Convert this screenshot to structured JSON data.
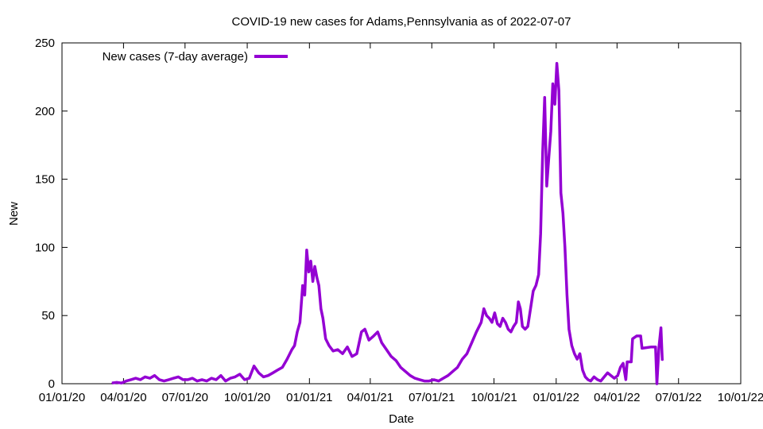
{
  "chart_data": {
    "type": "line",
    "title": "COVID-19 new cases for Adams,Pennsylvania as of 2022-07-07",
    "xlabel": "Date",
    "ylabel": "New",
    "xlim": [
      "2020-01-01",
      "2022-10-01"
    ],
    "ylim": [
      0,
      250
    ],
    "y_ticks": [
      0,
      50,
      100,
      150,
      200,
      250
    ],
    "x_ticks": [
      {
        "date": "2020-01-01",
        "label": "01/01/20"
      },
      {
        "date": "2020-04-01",
        "label": "04/01/20"
      },
      {
        "date": "2020-07-01",
        "label": "07/01/20"
      },
      {
        "date": "2020-10-01",
        "label": "10/01/20"
      },
      {
        "date": "2021-01-01",
        "label": "01/01/21"
      },
      {
        "date": "2021-04-01",
        "label": "04/01/21"
      },
      {
        "date": "2021-07-01",
        "label": "07/01/21"
      },
      {
        "date": "2021-10-01",
        "label": "10/01/21"
      },
      {
        "date": "2022-01-01",
        "label": "01/01/22"
      },
      {
        "date": "2022-04-01",
        "label": "04/01/22"
      },
      {
        "date": "2022-07-01",
        "label": "07/01/22"
      },
      {
        "date": "2022-10-01",
        "label": "10/01/22"
      }
    ],
    "legend_position": "top-left",
    "series": [
      {
        "name": "New cases (7-day average)",
        "color": "#9400d3",
        "points": [
          [
            "2020-03-15",
            0.5
          ],
          [
            "2020-03-22",
            1
          ],
          [
            "2020-03-29",
            0.5
          ],
          [
            "2020-04-05",
            2
          ],
          [
            "2020-04-12",
            3
          ],
          [
            "2020-04-19",
            4
          ],
          [
            "2020-04-26",
            3
          ],
          [
            "2020-05-03",
            5
          ],
          [
            "2020-05-10",
            4
          ],
          [
            "2020-05-17",
            6
          ],
          [
            "2020-05-24",
            3
          ],
          [
            "2020-05-31",
            2
          ],
          [
            "2020-06-07",
            3
          ],
          [
            "2020-06-14",
            4
          ],
          [
            "2020-06-21",
            5
          ],
          [
            "2020-06-28",
            3
          ],
          [
            "2020-07-05",
            3
          ],
          [
            "2020-07-12",
            4
          ],
          [
            "2020-07-19",
            2
          ],
          [
            "2020-07-26",
            3
          ],
          [
            "2020-08-02",
            2
          ],
          [
            "2020-08-09",
            4
          ],
          [
            "2020-08-16",
            3
          ],
          [
            "2020-08-23",
            6
          ],
          [
            "2020-08-30",
            2
          ],
          [
            "2020-09-06",
            4
          ],
          [
            "2020-09-13",
            5
          ],
          [
            "2020-09-20",
            7
          ],
          [
            "2020-09-27",
            3
          ],
          [
            "2020-10-04",
            4
          ],
          [
            "2020-10-11",
            13
          ],
          [
            "2020-10-18",
            8
          ],
          [
            "2020-10-25",
            5
          ],
          [
            "2020-11-01",
            6
          ],
          [
            "2020-11-08",
            8
          ],
          [
            "2020-11-15",
            10
          ],
          [
            "2020-11-22",
            12
          ],
          [
            "2020-11-29",
            18
          ],
          [
            "2020-12-06",
            25
          ],
          [
            "2020-12-10",
            28
          ],
          [
            "2020-12-14",
            38
          ],
          [
            "2020-12-18",
            45
          ],
          [
            "2020-12-22",
            72
          ],
          [
            "2020-12-25",
            65
          ],
          [
            "2020-12-28",
            98
          ],
          [
            "2020-12-31",
            82
          ],
          [
            "2021-01-03",
            90
          ],
          [
            "2021-01-06",
            75
          ],
          [
            "2021-01-09",
            86
          ],
          [
            "2021-01-12",
            78
          ],
          [
            "2021-01-15",
            72
          ],
          [
            "2021-01-18",
            55
          ],
          [
            "2021-01-21",
            48
          ],
          [
            "2021-01-25",
            33
          ],
          [
            "2021-01-30",
            28
          ],
          [
            "2021-02-05",
            24
          ],
          [
            "2021-02-12",
            25
          ],
          [
            "2021-02-19",
            22
          ],
          [
            "2021-02-26",
            27
          ],
          [
            "2021-03-05",
            20
          ],
          [
            "2021-03-12",
            22
          ],
          [
            "2021-03-19",
            38
          ],
          [
            "2021-03-24",
            40
          ],
          [
            "2021-03-30",
            32
          ],
          [
            "2021-04-06",
            35
          ],
          [
            "2021-04-12",
            38
          ],
          [
            "2021-04-18",
            30
          ],
          [
            "2021-04-25",
            25
          ],
          [
            "2021-05-02",
            20
          ],
          [
            "2021-05-09",
            17
          ],
          [
            "2021-05-16",
            12
          ],
          [
            "2021-05-23",
            9
          ],
          [
            "2021-05-30",
            6
          ],
          [
            "2021-06-06",
            4
          ],
          [
            "2021-06-13",
            3
          ],
          [
            "2021-06-20",
            2
          ],
          [
            "2021-06-27",
            2
          ],
          [
            "2021-07-04",
            3
          ],
          [
            "2021-07-11",
            2
          ],
          [
            "2021-07-18",
            4
          ],
          [
            "2021-07-25",
            6
          ],
          [
            "2021-08-01",
            9
          ],
          [
            "2021-08-08",
            12
          ],
          [
            "2021-08-15",
            18
          ],
          [
            "2021-08-22",
            22
          ],
          [
            "2021-08-29",
            30
          ],
          [
            "2021-09-05",
            38
          ],
          [
            "2021-09-12",
            45
          ],
          [
            "2021-09-16",
            55
          ],
          [
            "2021-09-20",
            50
          ],
          [
            "2021-09-24",
            48
          ],
          [
            "2021-09-28",
            45
          ],
          [
            "2021-10-02",
            52
          ],
          [
            "2021-10-06",
            44
          ],
          [
            "2021-10-10",
            42
          ],
          [
            "2021-10-14",
            48
          ],
          [
            "2021-10-18",
            45
          ],
          [
            "2021-10-22",
            40
          ],
          [
            "2021-10-26",
            38
          ],
          [
            "2021-10-30",
            42
          ],
          [
            "2021-11-03",
            45
          ],
          [
            "2021-11-06",
            60
          ],
          [
            "2021-11-09",
            55
          ],
          [
            "2021-11-12",
            42
          ],
          [
            "2021-11-16",
            40
          ],
          [
            "2021-11-20",
            42
          ],
          [
            "2021-11-24",
            55
          ],
          [
            "2021-11-28",
            68
          ],
          [
            "2021-12-02",
            72
          ],
          [
            "2021-12-06",
            80
          ],
          [
            "2021-12-09",
            110
          ],
          [
            "2021-12-12",
            170
          ],
          [
            "2021-12-15",
            210
          ],
          [
            "2021-12-18",
            145
          ],
          [
            "2021-12-21",
            165
          ],
          [
            "2021-12-24",
            185
          ],
          [
            "2021-12-27",
            220
          ],
          [
            "2021-12-30",
            205
          ],
          [
            "2022-01-02",
            235
          ],
          [
            "2022-01-05",
            215
          ],
          [
            "2022-01-08",
            140
          ],
          [
            "2022-01-11",
            125
          ],
          [
            "2022-01-14",
            100
          ],
          [
            "2022-01-17",
            65
          ],
          [
            "2022-01-20",
            40
          ],
          [
            "2022-01-24",
            28
          ],
          [
            "2022-01-28",
            22
          ],
          [
            "2022-02-01",
            18
          ],
          [
            "2022-02-05",
            22
          ],
          [
            "2022-02-09",
            10
          ],
          [
            "2022-02-13",
            5
          ],
          [
            "2022-02-17",
            3
          ],
          [
            "2022-02-21",
            2
          ],
          [
            "2022-02-26",
            5
          ],
          [
            "2022-03-03",
            3
          ],
          [
            "2022-03-08",
            2
          ],
          [
            "2022-03-13",
            5
          ],
          [
            "2022-03-18",
            8
          ],
          [
            "2022-03-23",
            6
          ],
          [
            "2022-03-28",
            4
          ],
          [
            "2022-04-02",
            6
          ],
          [
            "2022-04-06",
            12
          ],
          [
            "2022-04-10",
            15
          ],
          [
            "2022-04-14",
            3
          ],
          [
            "2022-04-16",
            16
          ],
          [
            "2022-04-22",
            16
          ],
          [
            "2022-04-24",
            33
          ],
          [
            "2022-04-30",
            35
          ],
          [
            "2022-05-06",
            35
          ],
          [
            "2022-05-08",
            26
          ],
          [
            "2022-05-22",
            27
          ],
          [
            "2022-05-28",
            27
          ],
          [
            "2022-05-30",
            0
          ],
          [
            "2022-06-02",
            27
          ],
          [
            "2022-06-05",
            41
          ],
          [
            "2022-06-07",
            17
          ]
        ]
      }
    ]
  }
}
